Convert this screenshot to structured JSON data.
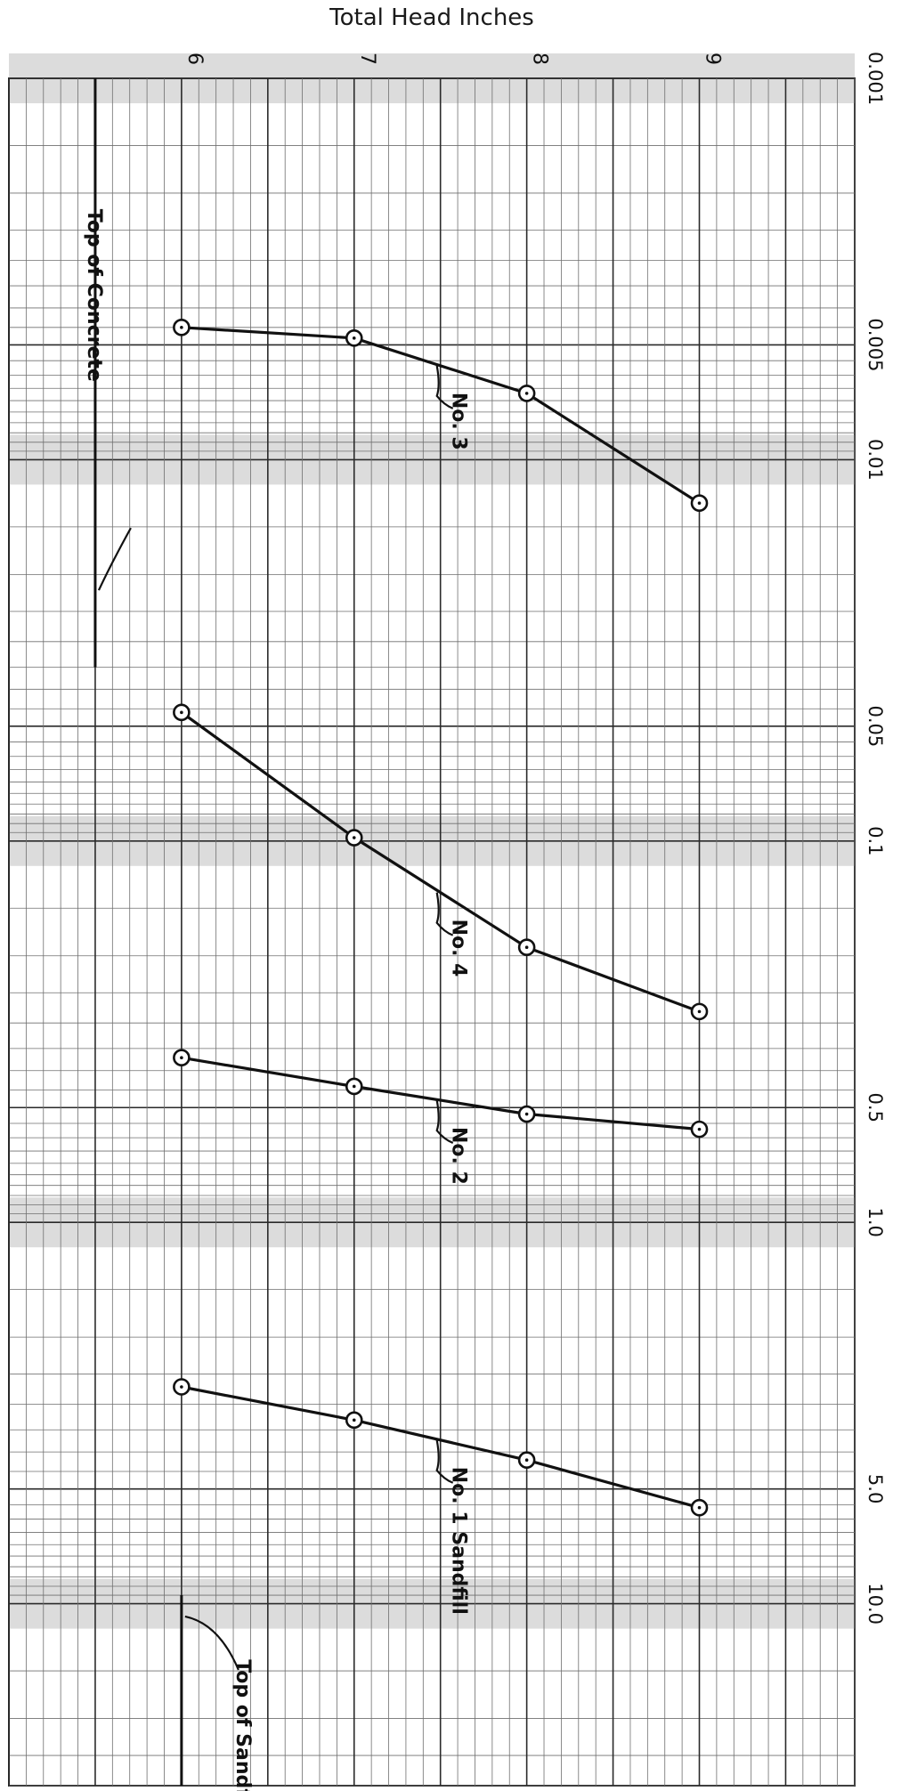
{
  "chart_data": {
    "type": "line",
    "orientation": "rotated-90",
    "title": "Total Head Inches",
    "head_axis": {
      "ticks": [
        6,
        7,
        8,
        9
      ],
      "range": [
        5.0,
        9.9
      ]
    },
    "log_axis": {
      "scale": "log",
      "range": [
        0.001,
        30
      ],
      "tick_labels": [
        {
          "value": 0.001,
          "label": "0.001"
        },
        {
          "value": 0.005,
          "label": "0.005"
        },
        {
          "value": 0.01,
          "label": "0.01"
        },
        {
          "value": 0.05,
          "label": "0.05"
        },
        {
          "value": 0.1,
          "label": "0.1"
        },
        {
          "value": 0.5,
          "label": "0.5"
        },
        {
          "value": 1.0,
          "label": "1.0"
        },
        {
          "value": 5.0,
          "label": "5.0"
        },
        {
          "value": 10.0,
          "label": "10.0"
        }
      ]
    },
    "series": [
      {
        "name": "No. 3",
        "head": [
          6,
          7,
          8,
          9
        ],
        "values": [
          0.0045,
          0.0048,
          0.0067,
          0.013
        ]
      },
      {
        "name": "No. 4",
        "head": [
          6,
          7,
          8,
          9
        ],
        "values": [
          0.046,
          0.098,
          0.19,
          0.28
        ]
      },
      {
        "name": "No. 2",
        "head": [
          6,
          7,
          8,
          9
        ],
        "values": [
          0.37,
          0.44,
          0.52,
          0.57
        ]
      },
      {
        "name": "No. 1 Sandfill",
        "head": [
          6,
          7,
          8,
          9
        ],
        "values": [
          2.7,
          3.3,
          4.2,
          5.6
        ]
      }
    ],
    "reference_lines": [
      {
        "label": "Top of Concrete",
        "head": 5.5,
        "from": 0.001,
        "to": 0.035
      },
      {
        "label": "Top of Sandfill",
        "head": 6.0,
        "from": 9.5,
        "to": 30
      }
    ],
    "grid": true
  }
}
